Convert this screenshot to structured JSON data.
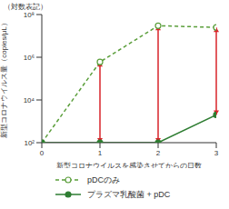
{
  "chart_data": {
    "type": "line",
    "annotation": "（対数表記）",
    "x_label": "新型コロナウイルスを感染させてからの日数",
    "y_label": "新型コロナウイルス量（copies/μL）",
    "x": [
      0,
      1,
      2,
      3
    ],
    "xlim": [
      0,
      3
    ],
    "xticks": [
      0,
      1,
      2,
      3
    ],
    "ylim": [
      100,
      100000000
    ],
    "yticks": [
      {
        "value": 100,
        "label": "10²"
      },
      {
        "value": 10000,
        "label": "10⁴"
      },
      {
        "value": 1000000,
        "label": "10⁶"
      },
      {
        "value": 100000000,
        "label": "10⁸"
      }
    ],
    "log": "y",
    "grid": false,
    "series": [
      {
        "name": "pDCのみ",
        "color": "#5a9e3a",
        "marker": "circle_open",
        "line_style": "dashed",
        "values": [
          100,
          600000,
          30000000,
          25000000
        ]
      },
      {
        "name": "プラズマ乳酸菌 + pDC",
        "color": "#2e7d32",
        "marker": "circle",
        "line_style": "solid",
        "values": [
          100,
          100,
          100,
          2000
        ]
      }
    ]
  }
}
